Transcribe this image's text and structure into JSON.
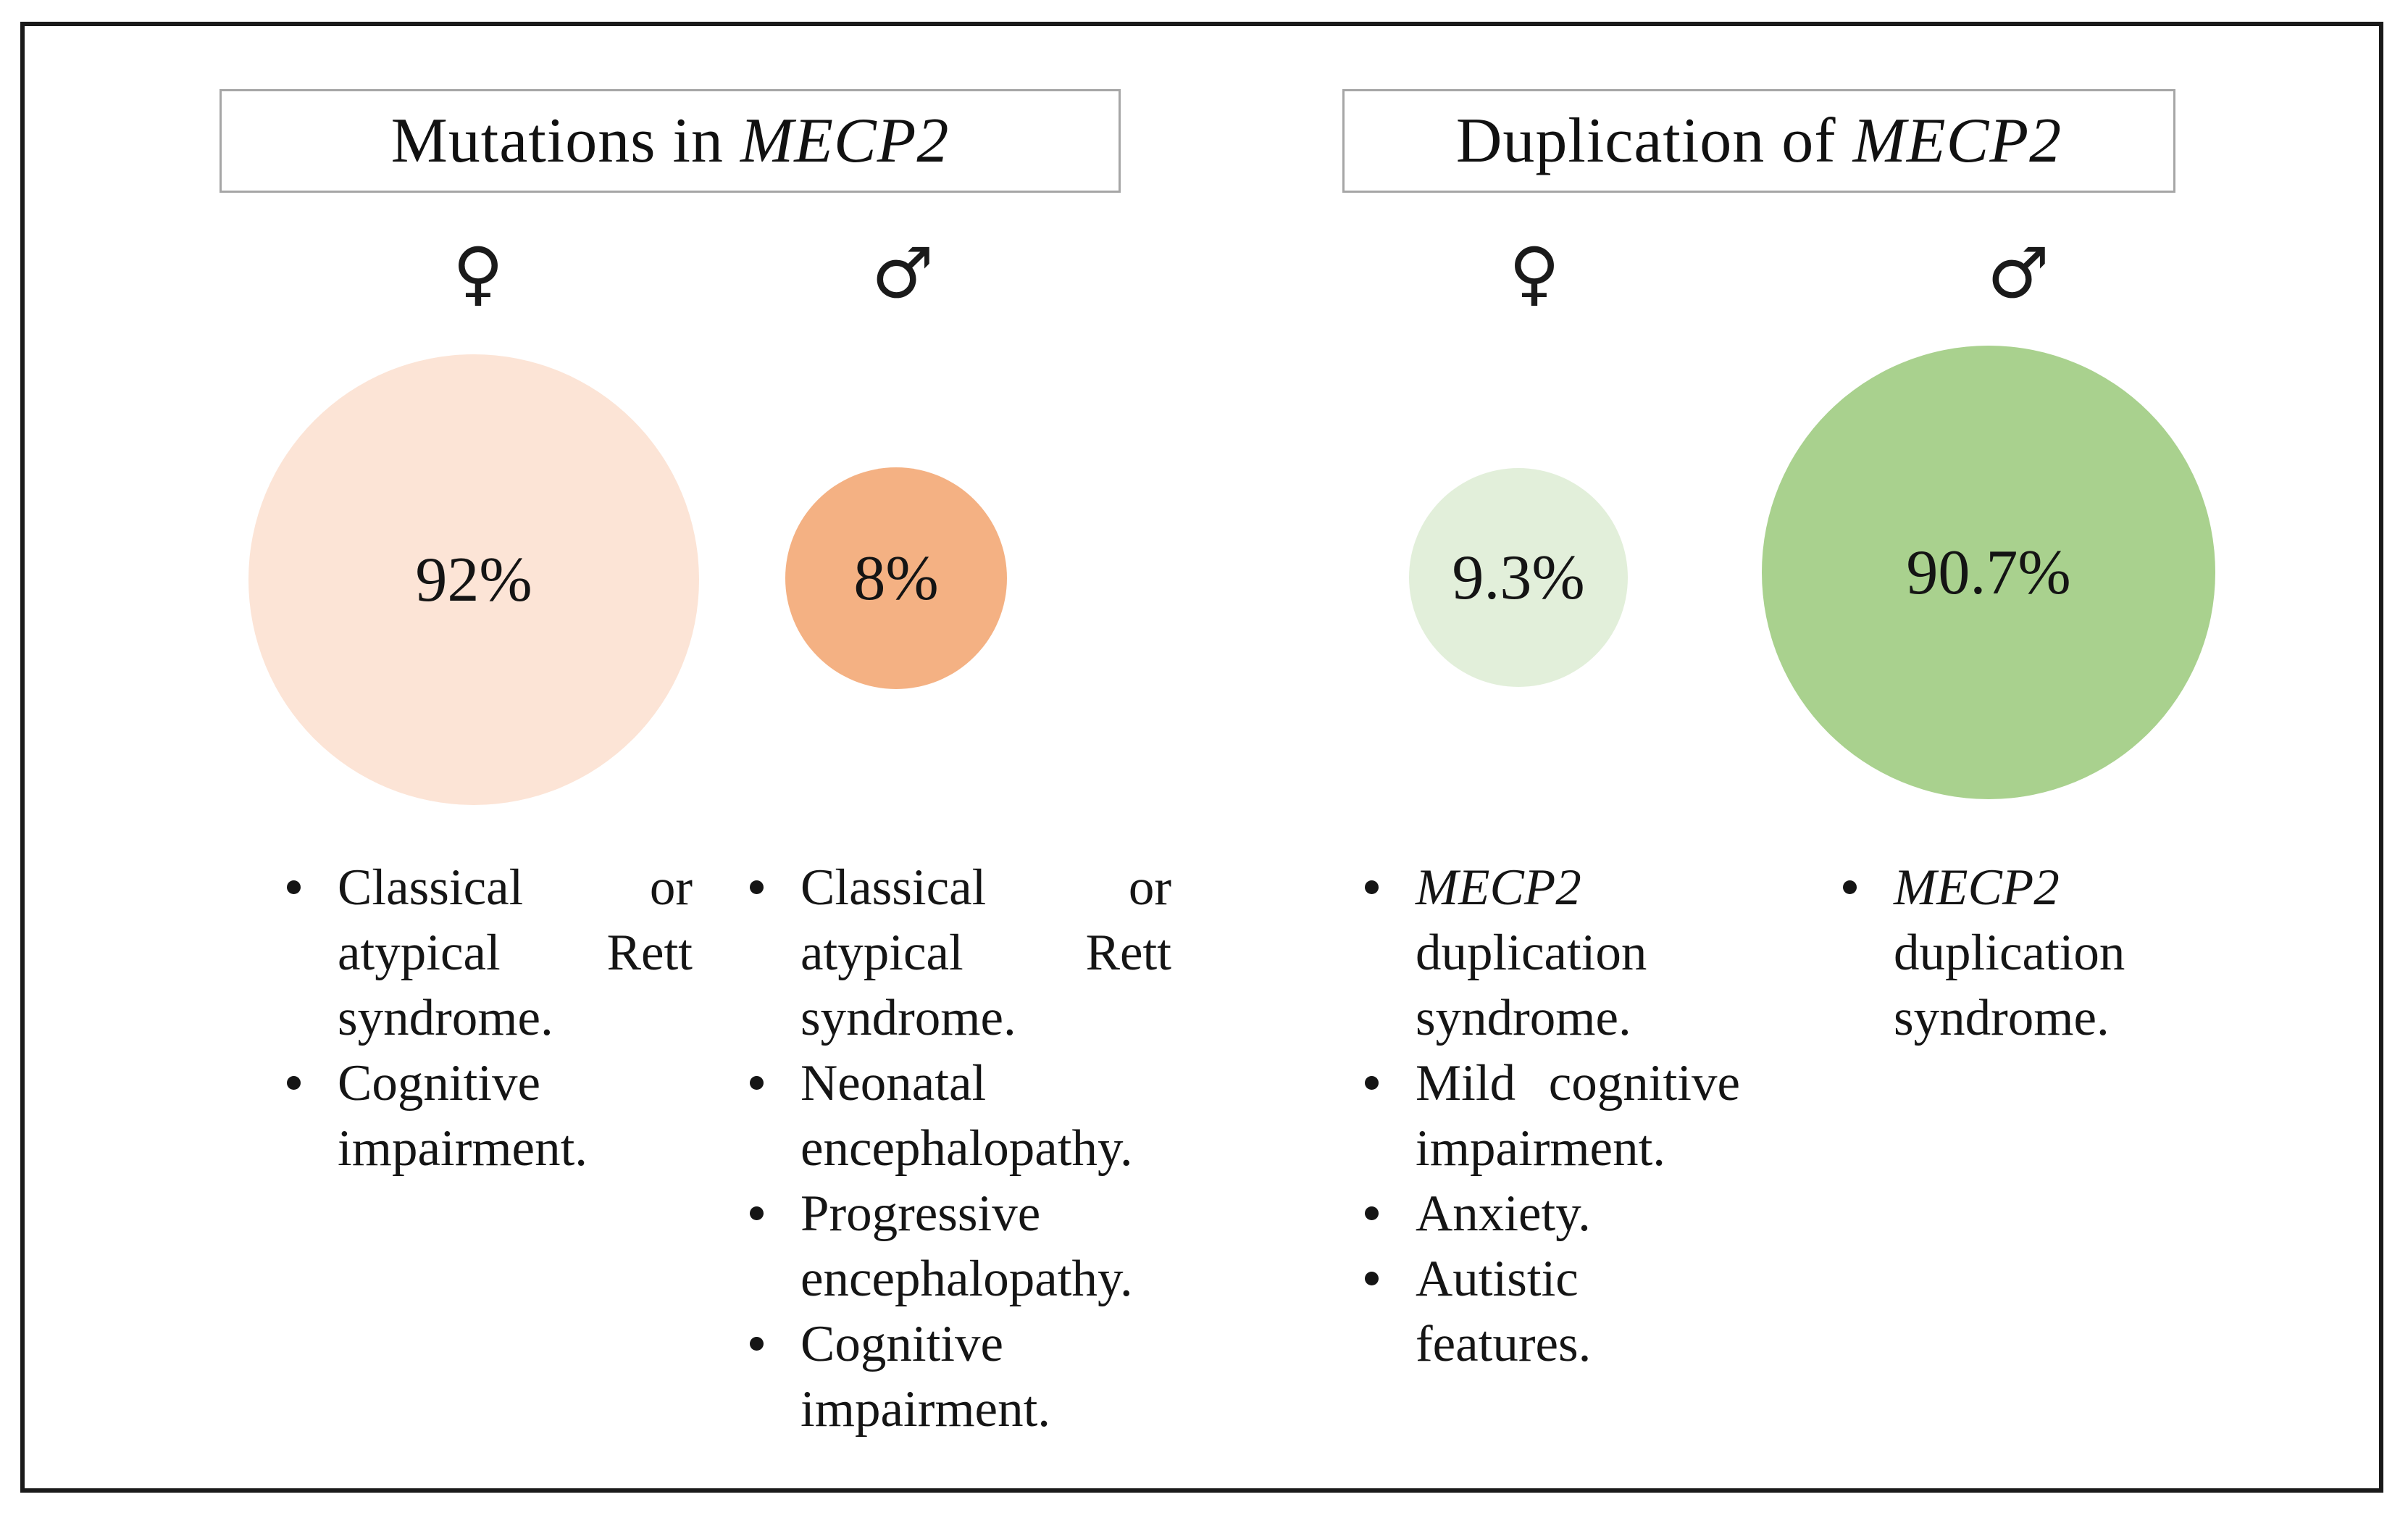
{
  "panels": [
    {
      "title_prefix": "Mutations in ",
      "title_gene": "MECP2"
    },
    {
      "title_prefix": "Duplication of ",
      "title_gene": "MECP2"
    }
  ],
  "colors": {
    "female_mutation_circle": "#FCE4D6",
    "male_mutation_circle": "#F4B183",
    "female_duplication_circle": "#E2EFDA",
    "male_duplication_circle": "#A9D18E",
    "box_border": "#a6a6a6",
    "frame_border": "#1a1a1a"
  },
  "columns": [
    {
      "sex": "female",
      "symbol": "♀",
      "percent": "92%",
      "circle_color": "#FCE4D6",
      "items": [
        {
          "text": "Classical or atypical Rett syndrome."
        },
        {
          "text": "Cognitive impairment."
        }
      ]
    },
    {
      "sex": "male",
      "symbol": "♂",
      "percent": "8%",
      "circle_color": "#F4B183",
      "items": [
        {
          "text": "Classical or atypical Rett syndrome."
        },
        {
          "text": "Neonatal encephalopathy."
        },
        {
          "text": "Progressive encephalopathy."
        },
        {
          "text": "Cognitive impairment."
        }
      ]
    },
    {
      "sex": "female",
      "symbol": "♀",
      "percent": "9.3%",
      "circle_color": "#E2EFDA",
      "items": [
        {
          "gene": "MECP2",
          "text": " duplication syndrome."
        },
        {
          "text": "Mild cognitive impairment."
        },
        {
          "text": "Anxiety."
        },
        {
          "text": "Autistic features."
        }
      ]
    },
    {
      "sex": "male",
      "symbol": "♂",
      "percent": "90.7%",
      "circle_color": "#A9D18E",
      "items": [
        {
          "gene": "MECP2",
          "text": " duplication syndrome."
        }
      ]
    }
  ]
}
